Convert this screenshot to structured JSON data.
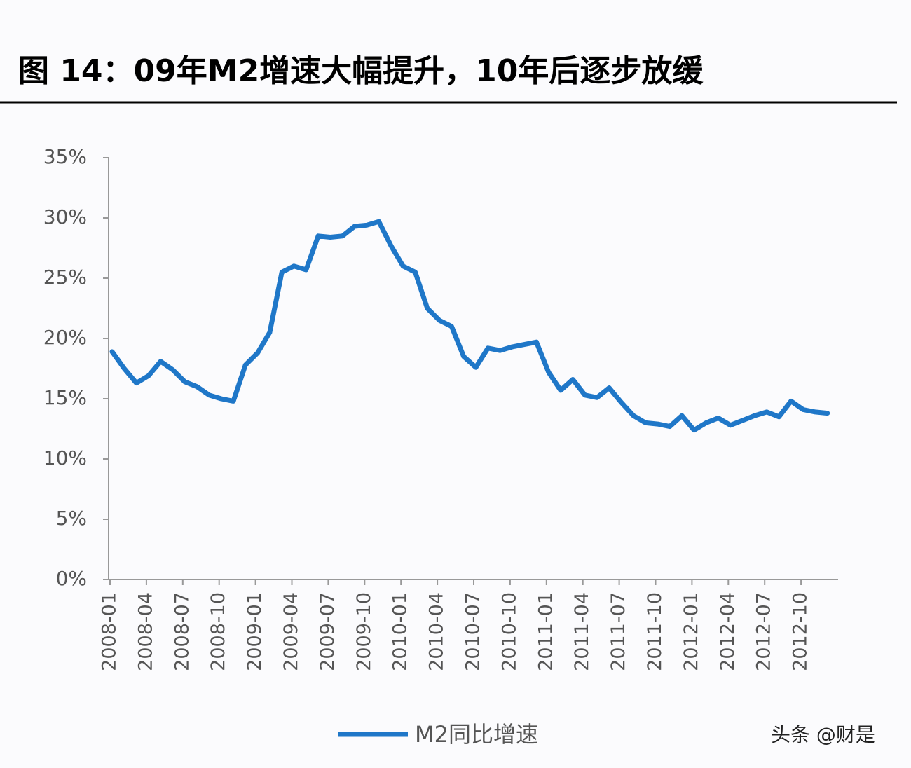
{
  "chart_data": {
    "type": "line",
    "title": "图 14：09年M2增速大幅提升，10年后逐步放缓",
    "categories": [
      "2008-01",
      null,
      null,
      "2008-04",
      null,
      null,
      "2008-07",
      null,
      null,
      "2008-10",
      null,
      null,
      "2009-01",
      null,
      null,
      "2009-04",
      null,
      null,
      "2009-07",
      null,
      null,
      "2009-10",
      null,
      null,
      "2010-01",
      null,
      null,
      "2010-04",
      null,
      null,
      "2010-07",
      null,
      null,
      "2010-10",
      null,
      null,
      "2011-01",
      null,
      null,
      "2011-04",
      null,
      null,
      "2011-07",
      null,
      null,
      "2011-10",
      null,
      null,
      "2012-01",
      null,
      null,
      "2012-04",
      null,
      null,
      "2012-07",
      null,
      null,
      "2012-10",
      null,
      null
    ],
    "series": [
      {
        "name": "M2同比增速",
        "color": "#1f77c8",
        "values": [
          18.9,
          17.5,
          16.3,
          16.9,
          18.1,
          17.4,
          16.4,
          16.0,
          15.3,
          15.0,
          14.8,
          17.8,
          18.8,
          20.5,
          25.5,
          26.0,
          25.7,
          28.5,
          28.4,
          28.5,
          29.3,
          29.4,
          29.7,
          27.7,
          26.0,
          25.5,
          22.5,
          21.5,
          21.0,
          18.5,
          17.6,
          19.2,
          19.0,
          19.3,
          19.5,
          19.7,
          17.2,
          15.7,
          16.6,
          15.3,
          15.1,
          15.9,
          14.7,
          13.6,
          13.0,
          12.9,
          12.7,
          13.6,
          12.4,
          13.0,
          13.4,
          12.8,
          13.2,
          13.6,
          13.9,
          13.5,
          14.8,
          14.1,
          13.9,
          13.8
        ]
      }
    ],
    "ylim": [
      0,
      35
    ],
    "yticks": [
      {
        "value": 0,
        "label": "0%"
      },
      {
        "value": 5,
        "label": "5%"
      },
      {
        "value": 10,
        "label": "10%"
      },
      {
        "value": 15,
        "label": "15%"
      },
      {
        "value": 20,
        "label": "20%"
      },
      {
        "value": 25,
        "label": "25%"
      },
      {
        "value": 30,
        "label": "30%"
      },
      {
        "value": 35,
        "label": "35%"
      }
    ],
    "grid": false,
    "legend": "bottom",
    "watermark": "头条 @财是"
  }
}
